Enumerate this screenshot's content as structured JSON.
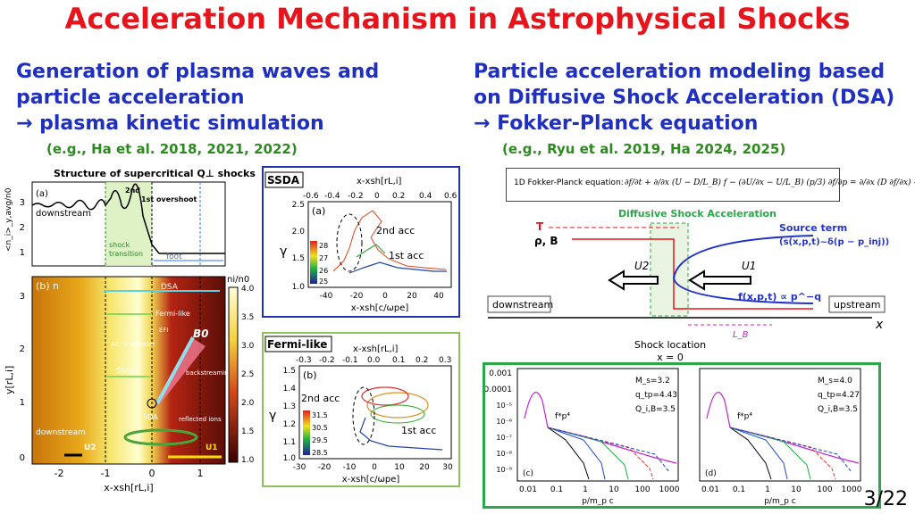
{
  "title": "Acceleration Mechanism in Astrophysical Shocks",
  "left": {
    "heading1": "Generation of plasma waves and",
    "heading2": "particle acceleration",
    "heading3": "→ plasma kinetic simulation",
    "ref": "(e.g., Ha et al. 2018, 2021, 2022)",
    "fig_title": "Structure of supercritical Q⊥ shocks",
    "panel_a": "(a)",
    "panel_b": "(b) n",
    "downstream_a": "downstream",
    "overshoot2": "2nd",
    "overshoot1": "1st overshoot",
    "shock_transition": "shock transition",
    "foot": "foot",
    "dsa": "DSA",
    "fermi_like": "Fermi-like",
    "aic": "AIC + whistler",
    "efi": "EFI",
    "b0": "B0",
    "backstreaming": "backstreaming electrons",
    "ssda": "SSDA",
    "sda": "SDA",
    "reflected": "reflected ions",
    "downstream_b": "downstream",
    "u2": "U2",
    "u1": "U1",
    "y_a": "<n_i>_y,avg/n0",
    "y_b": "y[rL,i]",
    "x_b": "x-xsh[rL,i]",
    "cbar_label": "ni/n0",
    "cbar_ticks": [
      "4.0",
      "3.5",
      "3.0",
      "2.5",
      "2.0",
      "1.5",
      "1.0"
    ],
    "xticks": [
      "-2",
      "-1",
      "0",
      "1"
    ],
    "yticks_a": [
      "3",
      "2",
      "1"
    ],
    "yticks_b": [
      "3",
      "2",
      "1",
      "0"
    ]
  },
  "ssda_box": {
    "tag": "SSDA",
    "top_axis": "x-xsh[rL,i]",
    "top_ticks": [
      "-0.6",
      "-0.4",
      "-0.2",
      "0",
      "0.2",
      "0.4",
      "0.6"
    ],
    "panel": "(a)",
    "acc2": "2nd acc",
    "acc1": "1st acc",
    "ylabel": "γ",
    "yticks": [
      "2.5",
      "2.0",
      "1.5",
      "1.0"
    ],
    "bottom_ticks": [
      "-40",
      "-20",
      "0",
      "20",
      "40"
    ],
    "bottom_axis": "x-xsh[c/ωpe]",
    "cbar": [
      "28",
      "27",
      "26",
      "25"
    ],
    "cbar_label": "Ωcit"
  },
  "fermi_box": {
    "tag": "Fermi-like",
    "top_axis": "x-xsh[rL,i]",
    "top_ticks": [
      "-0.3",
      "-0.2",
      "-0.1",
      "0.0",
      "0.1",
      "0.2",
      "0.3"
    ],
    "panel": "(b)",
    "acc2": "2nd acc",
    "acc1": "1st acc",
    "ylabel": "γ",
    "yticks": [
      "1.5",
      "1.4",
      "1.3",
      "1.2",
      "1.1",
      "1.0"
    ],
    "bottom_ticks": [
      "-30",
      "-20",
      "-10",
      "0",
      "10",
      "20",
      "30"
    ],
    "bottom_axis": "x-xsh[c/ωpe]",
    "cbar": [
      "31.5",
      "30.5",
      "29.5",
      "28.5"
    ],
    "cbar_label": "Ωcit"
  },
  "right": {
    "heading1": "Particle acceleration modeling based",
    "heading2": "on Diffusive Shock Acceleration (DSA)",
    "heading3": "→ Fokker-Planck equation",
    "ref": "(e.g., Ryu et al. 2019, Ha 2024, 2025)",
    "fp_label": "1D Fokker-Planck equation:",
    "fp_eq": "∂f/∂t + ∂/∂x (U − D/L_B) f − (∂U/∂x − U/L_B) (p/3) ∂f/∂p = ∂/∂x (D ∂f/∂x) + s",
    "dsa_title": "Diffusive Shock Acceleration",
    "T": "T",
    "rhoB": "ρ, B",
    "source1": "Source term",
    "source2": "(s(x,p,t)~δ(p − p_inj))",
    "U2": "U2",
    "U1": "U1",
    "f_law": "f(x,p,t) ∝ p^−q",
    "downstream": "downstream",
    "upstream": "upstream",
    "x": "x",
    "LB": "L_B",
    "shock_loc": "Shock location",
    "x0": "x = 0"
  },
  "spectra": {
    "ylabels": [
      "0.001",
      "0.0001",
      "10⁻⁵",
      "10⁻⁶",
      "10⁻⁷",
      "10⁻⁸",
      "10⁻⁹"
    ],
    "xlabels": [
      "0.01",
      "0.1",
      "1",
      "10",
      "100",
      "1000"
    ],
    "xaxis": "p/m_p c",
    "fp4": "f*p⁴",
    "c": {
      "label": "(c)",
      "Ms": "M_s=3.2",
      "qtp": "q_tp=4.43",
      "Qib": "Q_i,B=3.5"
    },
    "d": {
      "label": "(d)",
      "Ms": "M_s=4.0",
      "qtp": "q_tp=4.27",
      "Qib": "Q_i,B=3.5"
    }
  },
  "page_number": "3/22"
}
